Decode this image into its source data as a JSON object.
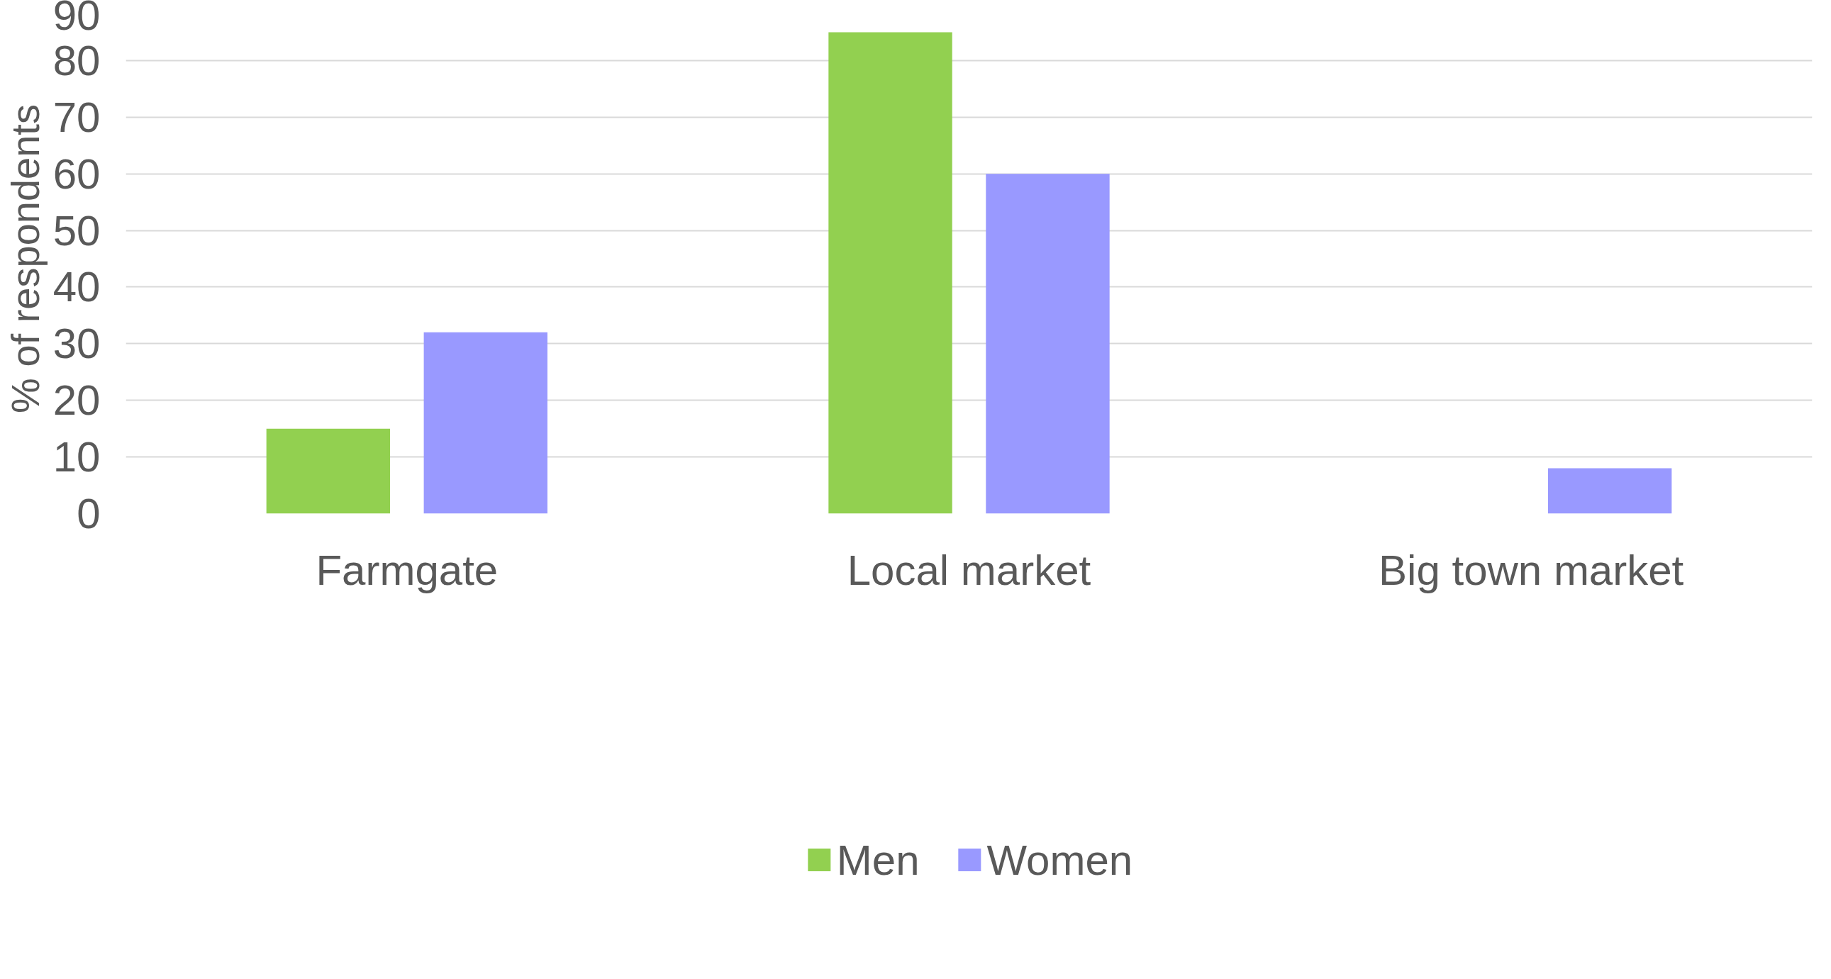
{
  "chart_data": {
    "type": "bar",
    "ylabel": "% of respondents",
    "categories": [
      "Farmgate",
      "Local market",
      "Big town market"
    ],
    "series": [
      {
        "name": "Men",
        "color": "#92d050",
        "values": [
          15,
          85,
          0
        ]
      },
      {
        "name": "Women",
        "color": "#9999ff",
        "values": [
          32,
          60,
          8
        ]
      }
    ],
    "ylim": [
      0,
      90
    ],
    "yticks": [
      0,
      10,
      20,
      30,
      40,
      50,
      60,
      70,
      80,
      90
    ],
    "grid": "y",
    "legend": "bottom"
  }
}
